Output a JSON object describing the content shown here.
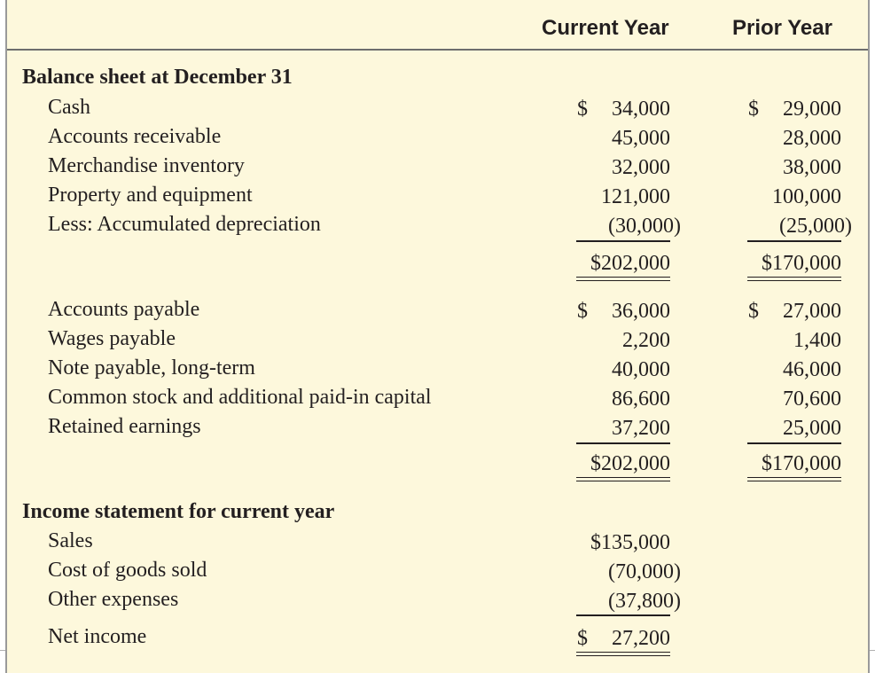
{
  "columns": {
    "current": "Current Year",
    "prior": "Prior Year"
  },
  "balance_sheet": {
    "title": "Balance sheet at December 31",
    "assets": [
      {
        "label": "Cash",
        "current_dollar": "$",
        "current": "34,000",
        "prior_dollar": "$",
        "prior": "29,000"
      },
      {
        "label": "Accounts receivable",
        "current_dollar": "",
        "current": "45,000",
        "prior_dollar": "",
        "prior": "28,000"
      },
      {
        "label": "Merchandise inventory",
        "current_dollar": "",
        "current": "32,000",
        "prior_dollar": "",
        "prior": "38,000"
      },
      {
        "label": "Property and equipment",
        "current_dollar": "",
        "current": "121,000",
        "prior_dollar": "",
        "prior": "100,000"
      },
      {
        "label": "Less: Accumulated depreciation",
        "current_dollar": "",
        "current": "(30,000)",
        "prior_dollar": "",
        "prior": "(25,000)"
      }
    ],
    "total_assets": {
      "current": "$202,000",
      "prior": "$170,000"
    },
    "liabilities_equity": [
      {
        "label": "Accounts payable",
        "current_dollar": "$",
        "current": "36,000",
        "prior_dollar": "$",
        "prior": "27,000"
      },
      {
        "label": "Wages payable",
        "current_dollar": "",
        "current": "2,200",
        "prior_dollar": "",
        "prior": "1,400"
      },
      {
        "label": "Note payable, long-term",
        "current_dollar": "",
        "current": "40,000",
        "prior_dollar": "",
        "prior": "46,000"
      },
      {
        "label": "Common stock and additional paid-in capital",
        "current_dollar": "",
        "current": "86,600",
        "prior_dollar": "",
        "prior": "70,600"
      },
      {
        "label": "Retained earnings",
        "current_dollar": "",
        "current": "37,200",
        "prior_dollar": "",
        "prior": "25,000"
      }
    ],
    "total_liabilities_equity": {
      "current": "$202,000",
      "prior": "$170,000"
    }
  },
  "income_statement": {
    "title": "Income statement for current year",
    "rows": [
      {
        "label": "Sales",
        "current": "$135,000"
      },
      {
        "label": "Cost of goods sold",
        "current": "(70,000)"
      },
      {
        "label": "Other expenses",
        "current": "(37,800)"
      }
    ],
    "net_income": {
      "label": "Net income",
      "dollar": "$",
      "current": "27,200"
    }
  }
}
